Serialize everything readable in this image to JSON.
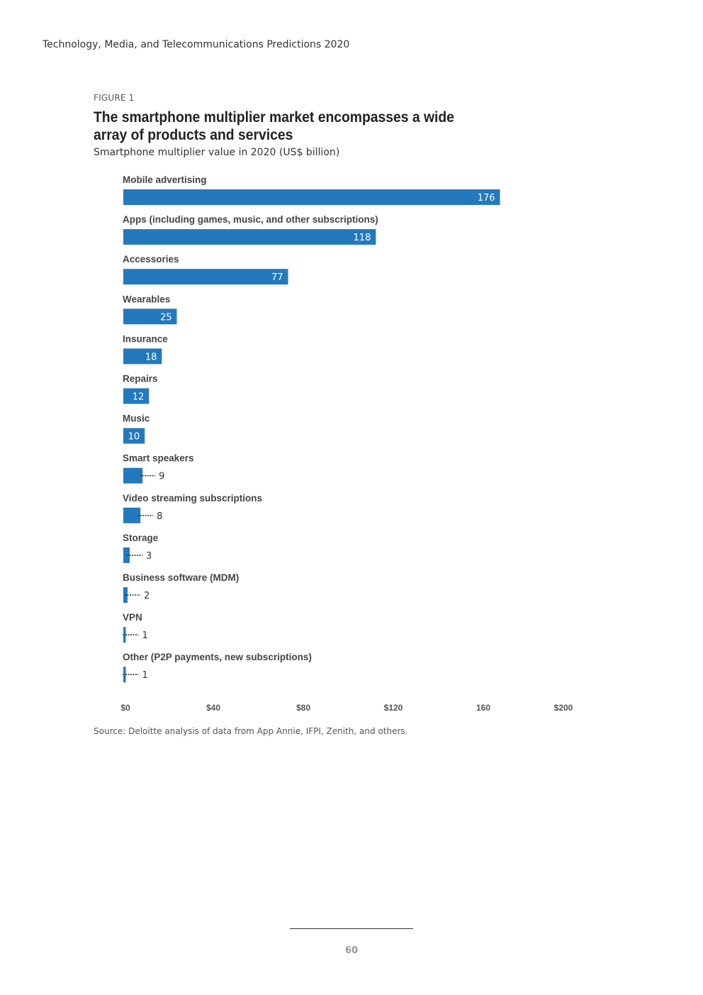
{
  "header": {
    "running_title": "Technology, Media, and Telecommunications Predictions 2020"
  },
  "figure": {
    "label": "FIGURE 1",
    "title": "The smartphone multiplier market encompasses a wide array of products and services",
    "subtitle": "Smartphone multiplier value in 2020 (US$ billion)",
    "source": "Source: Deloitte analysis of data from App Annie, IFPI, Zenith, and others."
  },
  "footer": {
    "page_number": "60"
  },
  "colors": {
    "bar": "#2479BD",
    "leader": "#333333"
  },
  "chart_data": {
    "type": "bar",
    "orientation": "horizontal",
    "title": "The smartphone multiplier market encompasses a wide array of products and services",
    "subtitle": "Smartphone multiplier value in 2020 (US$ billion)",
    "xlabel": "",
    "ylabel": "",
    "xlim": [
      0,
      200
    ],
    "grid": false,
    "categories": [
      "Mobile advertising",
      "Apps (including games, music, and other subscriptions)",
      "Accessories",
      "Wearables",
      "Insurance",
      "Repairs",
      "Music",
      "Smart speakers",
      "Video streaming subscriptions",
      "Storage",
      "Business software (MDM)",
      "VPN",
      "Other (P2P payments, new subscriptions)"
    ],
    "values": [
      176,
      118,
      77,
      25,
      18,
      12,
      10,
      9,
      8,
      3,
      2,
      1,
      1
    ],
    "x_ticks": [
      0,
      40,
      80,
      120,
      160,
      200
    ],
    "x_tick_labels": [
      "$0",
      "$40",
      "$80",
      "$120",
      "160",
      "$200"
    ]
  }
}
